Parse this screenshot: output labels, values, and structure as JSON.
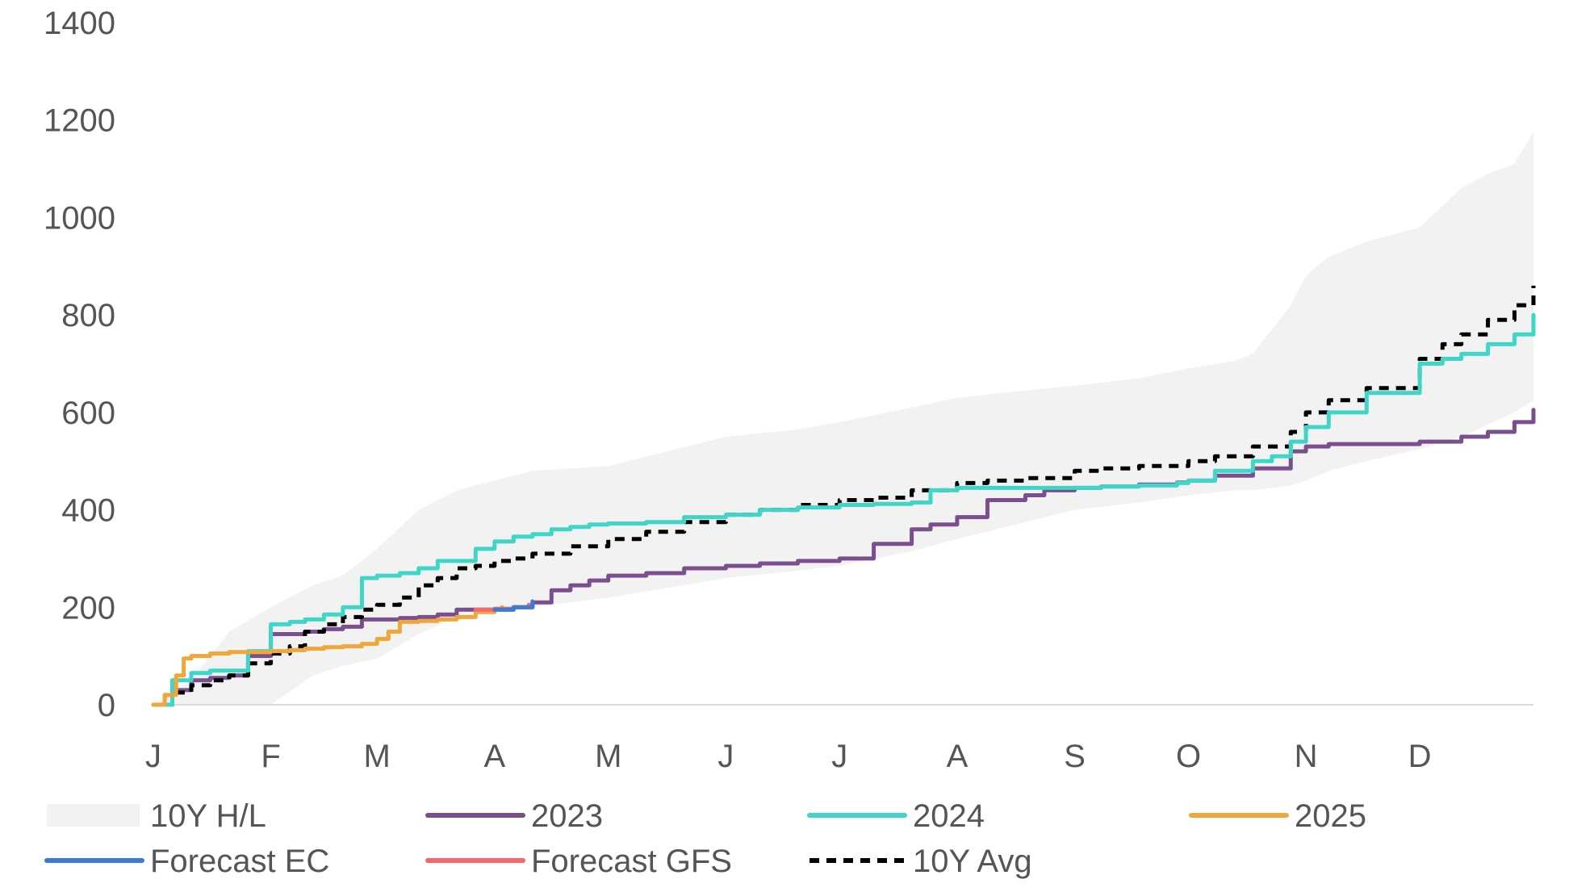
{
  "chart_data": {
    "type": "line",
    "title": "",
    "xlabel": "",
    "ylabel": "",
    "ylim": [
      0,
      1400
    ],
    "y_ticks": [
      "0",
      "200",
      "400",
      "600",
      "800",
      "1000",
      "1200",
      "1400"
    ],
    "x_tick_labels": [
      "J",
      "F",
      "M",
      "A",
      "M",
      "J",
      "J",
      "A",
      "S",
      "O",
      "N",
      "D"
    ],
    "x_unit": "day of year",
    "grid": false,
    "legend_position": "bottom",
    "band": {
      "name": "10Y H/L",
      "color": "#f2f2f2",
      "x": [
        0,
        10,
        20,
        31,
        42,
        50,
        59,
        70,
        80,
        90,
        100,
        120,
        151,
        170,
        181,
        200,
        212,
        230,
        243,
        260,
        273,
        285,
        290,
        300,
        304,
        310,
        320,
        334,
        345,
        352,
        359,
        364
      ],
      "high": [
        0,
        50,
        150,
        200,
        245,
        265,
        320,
        400,
        440,
        460,
        480,
        490,
        550,
        565,
        580,
        610,
        630,
        645,
        655,
        670,
        690,
        705,
        720,
        820,
        880,
        920,
        950,
        980,
        1060,
        1090,
        1110,
        1175
      ],
      "low": [
        0,
        0,
        0,
        0,
        60,
        80,
        95,
        145,
        180,
        190,
        200,
        220,
        260,
        275,
        285,
        315,
        340,
        375,
        400,
        415,
        430,
        440,
        440,
        450,
        460,
        480,
        500,
        525,
        550,
        575,
        600,
        625
      ]
    },
    "series": [
      {
        "name": "2023",
        "color": "#7b4f8e",
        "style": "solid",
        "x": [
          0,
          5,
          10,
          15,
          20,
          25,
          31,
          36,
          40,
          45,
          50,
          55,
          59,
          65,
          70,
          75,
          80,
          85,
          90,
          95,
          100,
          105,
          110,
          115,
          120,
          130,
          140,
          151,
          160,
          170,
          181,
          190,
          200,
          205,
          212,
          220,
          230,
          235,
          243,
          250,
          260,
          270,
          273,
          280,
          290,
          300,
          304,
          310,
          320,
          334,
          345,
          352,
          359,
          364
        ],
        "values": [
          0,
          30,
          50,
          55,
          60,
          100,
          145,
          145,
          150,
          155,
          160,
          175,
          175,
          178,
          180,
          185,
          195,
          195,
          195,
          200,
          210,
          235,
          245,
          255,
          265,
          270,
          280,
          285,
          290,
          295,
          300,
          330,
          360,
          370,
          385,
          420,
          430,
          440,
          445,
          448,
          452,
          456,
          460,
          470,
          485,
          520,
          530,
          535,
          535,
          540,
          550,
          560,
          580,
          605
        ]
      },
      {
        "name": "2024",
        "color": "#3fd6c8",
        "style": "solid",
        "x": [
          0,
          5,
          10,
          15,
          20,
          25,
          31,
          36,
          40,
          45,
          50,
          55,
          59,
          65,
          70,
          75,
          80,
          85,
          90,
          95,
          100,
          105,
          110,
          115,
          120,
          130,
          140,
          151,
          160,
          170,
          181,
          190,
          200,
          205,
          212,
          220,
          230,
          243,
          250,
          260,
          270,
          273,
          280,
          290,
          295,
          300,
          304,
          310,
          320,
          334,
          340,
          345,
          352,
          359,
          364
        ],
        "values": [
          0,
          50,
          65,
          70,
          70,
          110,
          165,
          170,
          175,
          185,
          200,
          260,
          265,
          270,
          280,
          295,
          295,
          320,
          335,
          345,
          350,
          360,
          365,
          370,
          372,
          375,
          385,
          390,
          400,
          405,
          410,
          412,
          415,
          440,
          445,
          445,
          445,
          445,
          448,
          450,
          455,
          460,
          480,
          500,
          510,
          540,
          570,
          600,
          640,
          700,
          710,
          720,
          740,
          760,
          800
        ]
      },
      {
        "name": "2025",
        "color": "#f0a73a",
        "style": "solid",
        "x": [
          0,
          3,
          6,
          8,
          10,
          15,
          20,
          25,
          31,
          36,
          40,
          45,
          50,
          55,
          59,
          62,
          65,
          70,
          75,
          80,
          85,
          90,
          92
        ],
        "values": [
          0,
          20,
          60,
          95,
          100,
          105,
          108,
          108,
          110,
          112,
          115,
          118,
          120,
          125,
          135,
          150,
          170,
          172,
          175,
          180,
          190,
          195,
          200
        ]
      },
      {
        "name": "Forecast EC",
        "color": "#3a7bd5",
        "style": "solid",
        "x": [
          90,
          95,
          100
        ],
        "values": [
          195,
          200,
          212
        ]
      },
      {
        "name": "Forecast GFS",
        "color": "#f4676b",
        "style": "solid",
        "x": [
          85,
          90,
          95,
          99
        ],
        "values": [
          195,
          197,
          200,
          205
        ]
      },
      {
        "name": "10Y Avg",
        "color": "#000000",
        "style": "dashed",
        "x": [
          0,
          5,
          10,
          15,
          20,
          25,
          31,
          36,
          40,
          45,
          50,
          55,
          59,
          65,
          70,
          75,
          80,
          85,
          90,
          95,
          100,
          110,
          120,
          130,
          140,
          151,
          160,
          170,
          181,
          190,
          200,
          212,
          220,
          230,
          243,
          250,
          260,
          273,
          280,
          290,
          300,
          304,
          310,
          320,
          334,
          340,
          345,
          352,
          359,
          364
        ],
        "values": [
          0,
          25,
          40,
          50,
          60,
          85,
          105,
          120,
          150,
          165,
          180,
          195,
          205,
          220,
          245,
          260,
          280,
          285,
          295,
          300,
          310,
          325,
          340,
          355,
          375,
          390,
          400,
          410,
          420,
          425,
          440,
          455,
          460,
          465,
          480,
          485,
          490,
          500,
          510,
          530,
          560,
          600,
          625,
          650,
          710,
          740,
          760,
          790,
          820,
          860
        ]
      }
    ]
  },
  "legend": {
    "items": [
      {
        "label": "10Y H/L",
        "kind": "band",
        "color": "#f2f2f2"
      },
      {
        "label": "2023",
        "kind": "line",
        "color": "#7b4f8e"
      },
      {
        "label": "2024",
        "kind": "line",
        "color": "#3fd6c8"
      },
      {
        "label": "2025",
        "kind": "line",
        "color": "#f0a73a"
      },
      {
        "label": "Forecast EC",
        "kind": "line",
        "color": "#3a7bd5"
      },
      {
        "label": "Forecast GFS",
        "kind": "line",
        "color": "#f4676b"
      },
      {
        "label": "10Y Avg",
        "kind": "dashed",
        "color": "#000000"
      }
    ]
  }
}
